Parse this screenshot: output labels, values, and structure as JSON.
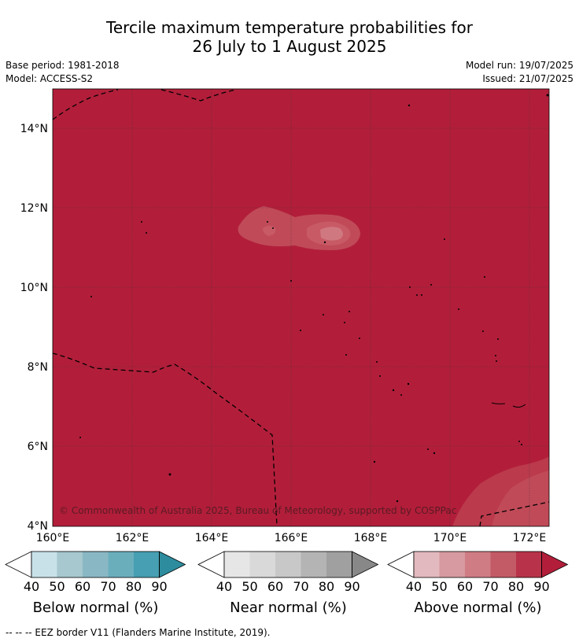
{
  "title": {
    "line1": "Tercile maximum temperature probabilities for",
    "line2": "26 July to 1 August 2025"
  },
  "meta": {
    "base_period": "Base period: 1981-2018",
    "model": "Model: ACCESS-S2",
    "model_run": "Model run: 19/07/2025",
    "issued": "Issued: 21/07/2025"
  },
  "map": {
    "lat_ticks": [
      "14°N",
      "12°N",
      "10°N",
      "8°N",
      "6°N",
      "4°N"
    ],
    "lon_ticks": [
      "160°E",
      "162°E",
      "164°E",
      "166°E",
      "168°E",
      "170°E",
      "172°E"
    ],
    "copyright": "© Commonwealth of Australia 2025, Bureau of Meteorology, supported by COSPPac",
    "fill_color": "#b21e3a"
  },
  "colorbars": [
    {
      "title": "Below normal (%)",
      "ticks": [
        "40",
        "50",
        "60",
        "70",
        "80",
        "90"
      ],
      "colors": [
        "#ffffff",
        "#c8e1e8",
        "#a6c8ce",
        "#89b8c4",
        "#6aaebc",
        "#469fb2",
        "#2d8c9d"
      ]
    },
    {
      "title": "Near normal (%)",
      "ticks": [
        "40",
        "50",
        "60",
        "70",
        "80",
        "90"
      ],
      "colors": [
        "#ffffff",
        "#e6e6e6",
        "#d9d9d9",
        "#c8c8c8",
        "#b4b4b4",
        "#a0a0a0",
        "#888888"
      ]
    },
    {
      "title": "Above normal (%)",
      "ticks": [
        "40",
        "50",
        "60",
        "70",
        "80",
        "90"
      ],
      "colors": [
        "#ffffff",
        "#e2b9be",
        "#d69aa0",
        "#d07c84",
        "#c35b66",
        "#b83349",
        "#b21e3a"
      ]
    }
  ],
  "footnote": "--  --  -- EEZ border V11 (Flanders Marine Institute, 2019)."
}
